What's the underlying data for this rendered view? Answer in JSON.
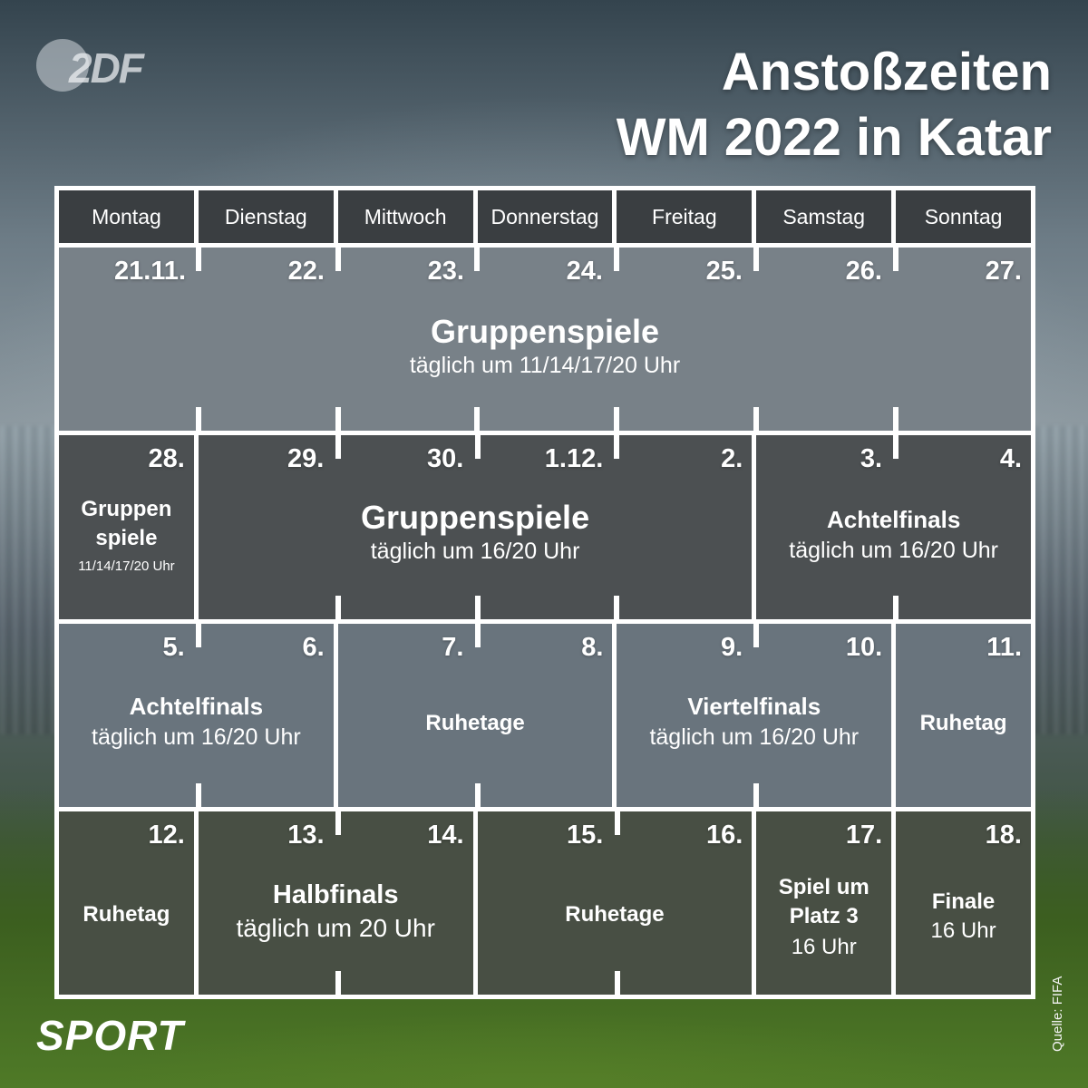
{
  "header": {
    "logo_text": "2DF",
    "title_line1": "Anstoßzeiten",
    "title_line2": "WM 2022 in Katar"
  },
  "weekdays": [
    "Montag",
    "Dienstag",
    "Mittwoch",
    "Donnerstag",
    "Freitag",
    "Samstag",
    "Sonntag"
  ],
  "week1": {
    "dates": [
      "21.11.",
      "22.",
      "23.",
      "24.",
      "25.",
      "26.",
      "27."
    ],
    "event": "Gruppenspiele",
    "time": "täglich um 11/14/17/20 Uhr"
  },
  "week2": {
    "dates": [
      "28.",
      "29.",
      "30.",
      "1.12.",
      "2.",
      "3.",
      "4."
    ],
    "monday_event_line1": "Gruppen",
    "monday_event_line2": "spiele",
    "monday_time": "11/14/17/20 Uhr",
    "mid_event": "Gruppenspiele",
    "mid_time": "täglich um 16/20 Uhr",
    "weekend_event": "Achtelfinals",
    "weekend_time": "täglich um 16/20 Uhr"
  },
  "week3": {
    "dates": [
      "5.",
      "6.",
      "7.",
      "8.",
      "9.",
      "10.",
      "11."
    ],
    "first_event": "Achtelfinals",
    "first_time": "täglich um 16/20 Uhr",
    "rest_label": "Ruhetage",
    "quarter_event": "Viertelfinals",
    "quarter_time": "täglich um 16/20 Uhr",
    "sunday_label": "Ruhetag"
  },
  "week4": {
    "dates": [
      "12.",
      "13.",
      "14.",
      "15.",
      "16.",
      "17.",
      "18."
    ],
    "monday_label": "Ruhetag",
    "semi_event": "Halbfinals",
    "semi_time": "täglich um 20 Uhr",
    "rest_label": "Ruhetage",
    "third_line1": "Spiel um",
    "third_line2": "Platz 3",
    "third_time": "16 Uhr",
    "final_event": "Finale",
    "final_time": "16 Uhr"
  },
  "footer": {
    "brand": "SPORT",
    "source": "Quelle: FIFA"
  }
}
